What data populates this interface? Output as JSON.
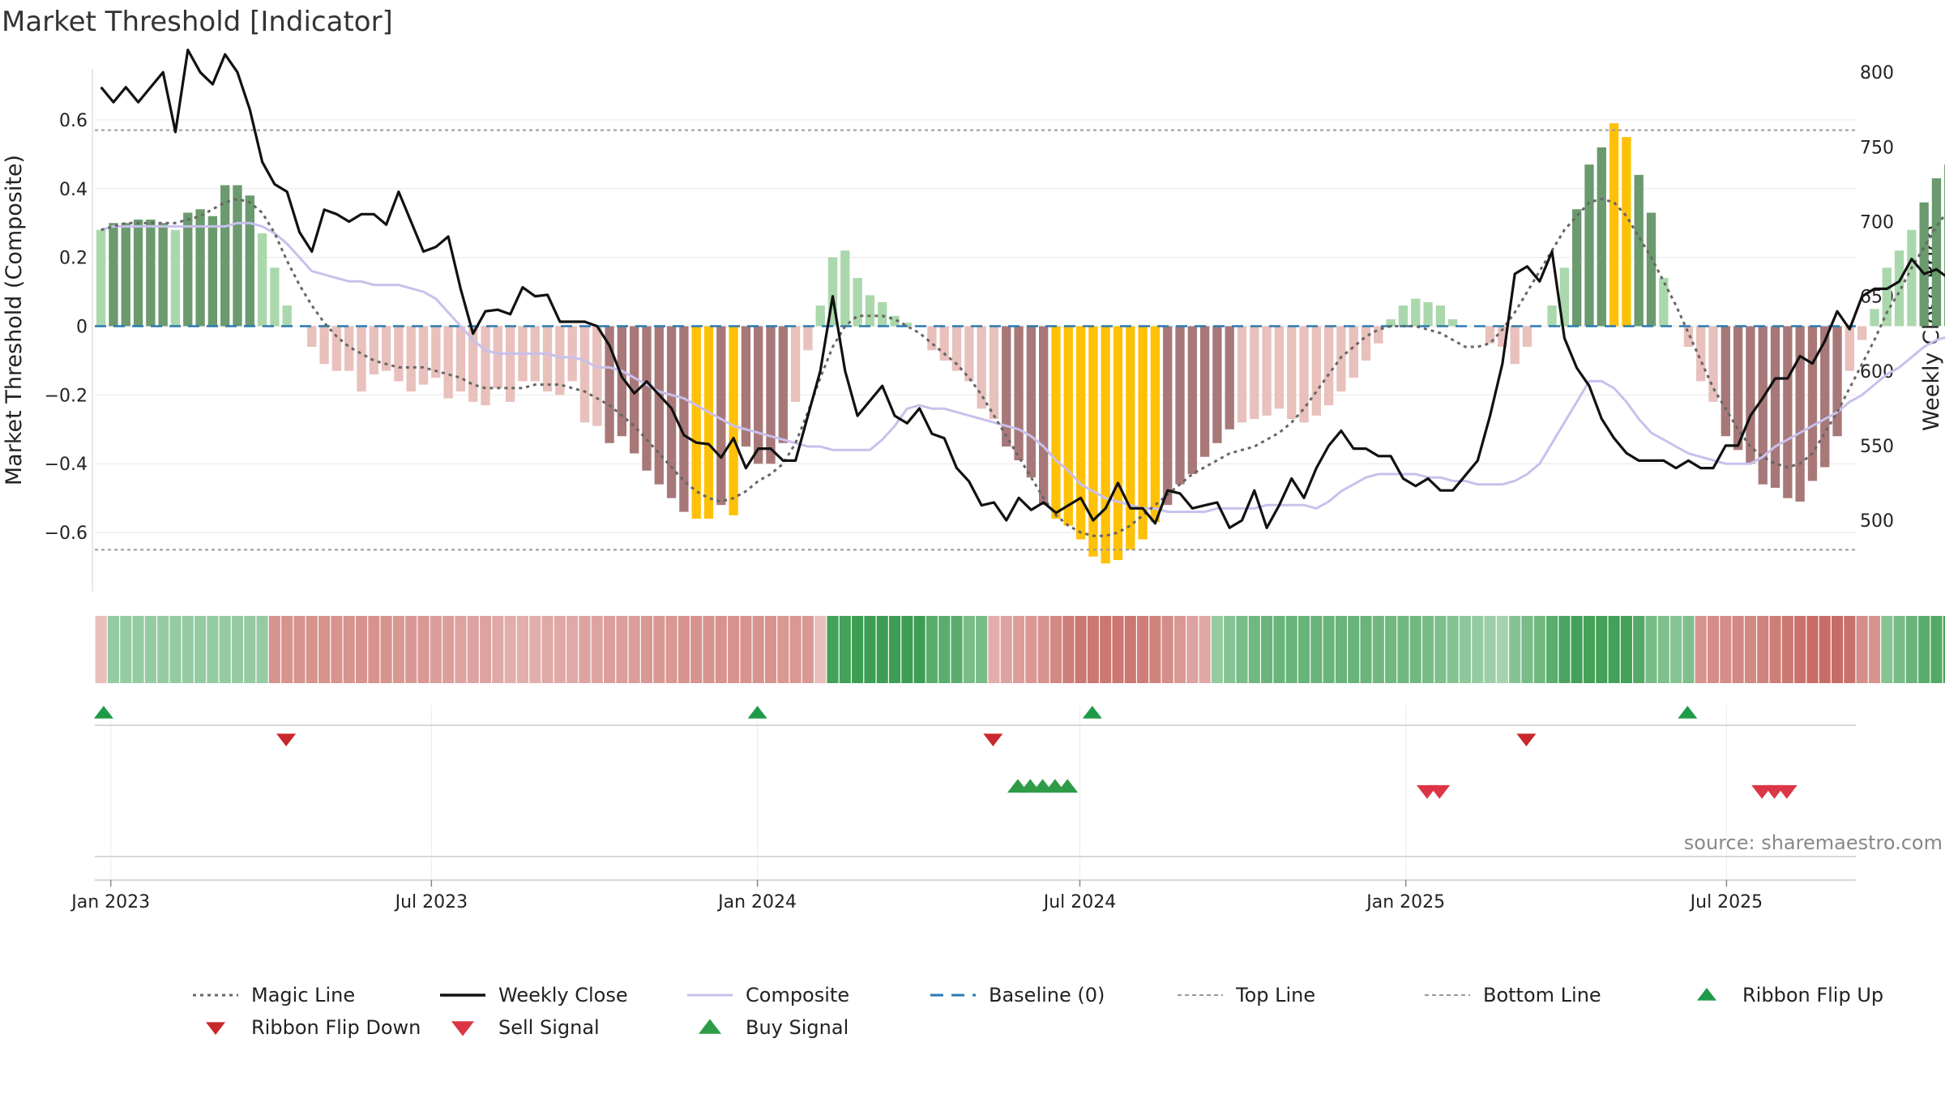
{
  "chart_data": {
    "type": "bar",
    "title": "Market Threshold [Indicator]",
    "ylabel": "Market Threshold (Composite)",
    "y2label": "Weekly Close Price",
    "source": "source: sharemaestro.com",
    "ylim": [
      -0.76,
      0.76
    ],
    "y2lim": [
      455,
      805
    ],
    "yticks": [
      -0.6,
      -0.4,
      -0.2,
      0,
      0.2,
      0.4,
      0.6
    ],
    "ytick_labels": [
      "−0.6",
      "−0.4",
      "−0.2",
      "0",
      "0.2",
      "0.4",
      "0.6"
    ],
    "y2ticks": [
      500,
      550,
      600,
      650,
      700,
      750,
      800
    ],
    "x_start": "2022-12-23",
    "x_end": "2025-09-12",
    "xticks": [
      "2023-01-01",
      "2023-07-01",
      "2024-01-01",
      "2024-07-01",
      "2025-01-01",
      "2025-07-01"
    ],
    "xtick_labels": [
      "Jan 2023",
      "Jul 2023",
      "Jan 2024",
      "Jul 2024",
      "Jan 2025",
      "Jul 2025"
    ],
    "top_line": 0.57,
    "bottom_line": -0.65,
    "colors": {
      "pos_strong": "#6a9a6e",
      "pos_weak": "#aad8ac",
      "neg_strong": "#a87878",
      "neg_weak": "#e8c0bc",
      "extreme": "#ffc107",
      "close": "#111111",
      "composite": "#c8c0ec",
      "magic": "#666666",
      "baseline": "#2a7ab0",
      "threshold": "#999999",
      "buy": "#2e9c46",
      "sell": "#dc3545",
      "flip_up": "#1e9a48",
      "flip_down": "#c8282c"
    },
    "threshold_bars": [
      0.28,
      0.3,
      0.3,
      0.31,
      0.31,
      0.3,
      0.28,
      0.33,
      0.34,
      0.32,
      0.41,
      0.41,
      0.38,
      0.27,
      0.17,
      0.06,
      0,
      -0.06,
      -0.11,
      -0.13,
      -0.13,
      -0.19,
      -0.14,
      -0.13,
      -0.16,
      -0.19,
      -0.17,
      -0.15,
      -0.21,
      -0.19,
      -0.22,
      -0.23,
      -0.18,
      -0.22,
      -0.16,
      -0.16,
      -0.19,
      -0.2,
      -0.16,
      -0.28,
      -0.29,
      -0.34,
      -0.32,
      -0.37,
      -0.42,
      -0.46,
      -0.5,
      -0.54,
      -0.56,
      -0.56,
      -0.52,
      -0.55,
      -0.35,
      -0.4,
      -0.4,
      -0.34,
      -0.22,
      -0.07,
      0.06,
      0.2,
      0.22,
      0.14,
      0.09,
      0.07,
      0.03,
      0.01,
      0,
      -0.07,
      -0.1,
      -0.13,
      -0.16,
      -0.24,
      -0.27,
      -0.35,
      -0.39,
      -0.44,
      -0.52,
      -0.56,
      -0.58,
      -0.62,
      -0.67,
      -0.69,
      -0.68,
      -0.65,
      -0.62,
      -0.57,
      -0.52,
      -0.46,
      -0.43,
      -0.38,
      -0.34,
      -0.3,
      -0.28,
      -0.27,
      -0.26,
      -0.24,
      -0.27,
      -0.28,
      -0.26,
      -0.23,
      -0.19,
      -0.15,
      -0.1,
      -0.05,
      0.02,
      0.06,
      0.08,
      0.07,
      0.06,
      0.02,
      0,
      0,
      -0.05,
      -0.06,
      -0.11,
      -0.06,
      0,
      0.06,
      0.17,
      0.34,
      0.47,
      0.52,
      0.59,
      0.55,
      0.44,
      0.33,
      0.14,
      0,
      -0.06,
      -0.16,
      -0.22,
      -0.32,
      -0.36,
      -0.4,
      -0.46,
      -0.47,
      -0.5,
      -0.51,
      -0.45,
      -0.41,
      -0.32,
      -0.13,
      -0.04,
      0.05,
      0.17,
      0.22,
      0.28,
      0.36,
      0.43,
      0.47,
      0.52,
      0.58,
      0.58,
      0.57,
      0.49,
      0.48,
      0.45,
      0.42,
      0.39
    ],
    "weekly_close": [
      790,
      780,
      790,
      780,
      790,
      800,
      760,
      815,
      800,
      792,
      812,
      800,
      775,
      740,
      725,
      720,
      693,
      680,
      708,
      705,
      700,
      705,
      705,
      698,
      720,
      700,
      680,
      683,
      690,
      655,
      625,
      640,
      641,
      638,
      656,
      650,
      651,
      633,
      633,
      633,
      630,
      617,
      596,
      585,
      593,
      584,
      575,
      557,
      552,
      551,
      542,
      555,
      535,
      548,
      548,
      540,
      540,
      570,
      600,
      650,
      600,
      570,
      580,
      590,
      570,
      565,
      575,
      558,
      555,
      535,
      526,
      510,
      512,
      500,
      515,
      507,
      512,
      505,
      510,
      515,
      500,
      508,
      525,
      508,
      508,
      498,
      520,
      518,
      508,
      510,
      512,
      495,
      500,
      520,
      495,
      510,
      528,
      515,
      535,
      550,
      560,
      548,
      548,
      543,
      543,
      528,
      523,
      528,
      520,
      520,
      530,
      540,
      570,
      605,
      665,
      670,
      660,
      680,
      622,
      602,
      590,
      568,
      555,
      545,
      540,
      540,
      540,
      535,
      540,
      535,
      535,
      550,
      550,
      570,
      582,
      595,
      595,
      610,
      605,
      620,
      640,
      628,
      650,
      655,
      655,
      660,
      675,
      665,
      668,
      662,
      670,
      682,
      690,
      690,
      694
    ],
    "composite": [
      0.28,
      0.29,
      0.29,
      0.29,
      0.29,
      0.29,
      0.29,
      0.29,
      0.29,
      0.29,
      0.29,
      0.3,
      0.3,
      0.29,
      0.27,
      0.24,
      0.2,
      0.16,
      0.15,
      0.14,
      0.13,
      0.13,
      0.12,
      0.12,
      0.12,
      0.11,
      0.1,
      0.08,
      0.04,
      0,
      -0.04,
      -0.07,
      -0.08,
      -0.08,
      -0.08,
      -0.08,
      -0.08,
      -0.09,
      -0.09,
      -0.1,
      -0.12,
      -0.12,
      -0.13,
      -0.15,
      -0.17,
      -0.19,
      -0.2,
      -0.21,
      -0.23,
      -0.25,
      -0.27,
      -0.29,
      -0.3,
      -0.31,
      -0.32,
      -0.33,
      -0.34,
      -0.35,
      -0.35,
      -0.36,
      -0.36,
      -0.36,
      -0.36,
      -0.33,
      -0.29,
      -0.24,
      -0.23,
      -0.24,
      -0.24,
      -0.25,
      -0.26,
      -0.27,
      -0.28,
      -0.29,
      -0.3,
      -0.32,
      -0.35,
      -0.39,
      -0.42,
      -0.46,
      -0.48,
      -0.5,
      -0.51,
      -0.52,
      -0.53,
      -0.53,
      -0.54,
      -0.54,
      -0.54,
      -0.54,
      -0.53,
      -0.53,
      -0.53,
      -0.53,
      -0.52,
      -0.52,
      -0.52,
      -0.52,
      -0.53,
      -0.51,
      -0.48,
      -0.46,
      -0.44,
      -0.43,
      -0.43,
      -0.43,
      -0.43,
      -0.44,
      -0.44,
      -0.45,
      -0.45,
      -0.46,
      -0.46,
      -0.46,
      -0.45,
      -0.43,
      -0.4,
      -0.34,
      -0.28,
      -0.22,
      -0.16,
      -0.16,
      -0.18,
      -0.22,
      -0.27,
      -0.31,
      -0.33,
      -0.35,
      -0.37,
      -0.38,
      -0.39,
      -0.4,
      -0.4,
      -0.4,
      -0.38,
      -0.35,
      -0.33,
      -0.31,
      -0.29,
      -0.27,
      -0.25,
      -0.22,
      -0.2,
      -0.17,
      -0.14,
      -0.12,
      -0.09,
      -0.06,
      -0.04,
      -0.03,
      -0.02,
      -0.01,
      0.01,
      0.03,
      0.05,
      0.07
    ],
    "magic_line": [
      0.28,
      0.29,
      0.3,
      0.3,
      0.3,
      0.3,
      0.3,
      0.31,
      0.32,
      0.34,
      0.36,
      0.37,
      0.36,
      0.33,
      0.27,
      0.19,
      0.12,
      0.06,
      0.01,
      -0.03,
      -0.06,
      -0.08,
      -0.1,
      -0.11,
      -0.12,
      -0.12,
      -0.12,
      -0.13,
      -0.14,
      -0.15,
      -0.17,
      -0.18,
      -0.18,
      -0.18,
      -0.18,
      -0.17,
      -0.17,
      -0.17,
      -0.18,
      -0.19,
      -0.21,
      -0.23,
      -0.26,
      -0.29,
      -0.33,
      -0.37,
      -0.41,
      -0.45,
      -0.48,
      -0.5,
      -0.51,
      -0.5,
      -0.48,
      -0.45,
      -0.43,
      -0.4,
      -0.34,
      -0.25,
      -0.15,
      -0.06,
      0,
      0.03,
      0.03,
      0.03,
      0.02,
      0,
      -0.02,
      -0.05,
      -0.08,
      -0.11,
      -0.15,
      -0.2,
      -0.26,
      -0.32,
      -0.38,
      -0.44,
      -0.5,
      -0.55,
      -0.58,
      -0.6,
      -0.61,
      -0.61,
      -0.6,
      -0.58,
      -0.55,
      -0.52,
      -0.49,
      -0.46,
      -0.43,
      -0.41,
      -0.39,
      -0.37,
      -0.36,
      -0.35,
      -0.33,
      -0.31,
      -0.28,
      -0.24,
      -0.19,
      -0.14,
      -0.09,
      -0.06,
      -0.03,
      -0.01,
      0,
      0,
      0,
      -0.01,
      -0.02,
      -0.04,
      -0.06,
      -0.06,
      -0.05,
      -0.01,
      0.04,
      0.1,
      0.16,
      0.22,
      0.28,
      0.32,
      0.36,
      0.37,
      0.36,
      0.32,
      0.26,
      0.2,
      0.13,
      0.06,
      -0.02,
      -0.1,
      -0.18,
      -0.24,
      -0.3,
      -0.35,
      -0.38,
      -0.4,
      -0.41,
      -0.4,
      -0.37,
      -0.31,
      -0.25,
      -0.18,
      -0.11,
      -0.04,
      0.04,
      0.1,
      0.17,
      0.23,
      0.29,
      0.34,
      0.39,
      0.43,
      0.46,
      0.47,
      0.46,
      0.45,
      0.45,
      0.44,
      0.43,
      0.42
    ],
    "ribbon": [
      -0.05,
      0.3,
      0.3,
      0.3,
      0.3,
      0.3,
      0.3,
      0.3,
      0.3,
      0.3,
      0.3,
      0.3,
      0.3,
      0.3,
      -0.45,
      -0.45,
      -0.45,
      -0.45,
      -0.45,
      -0.45,
      -0.45,
      -0.45,
      -0.45,
      -0.45,
      -0.4,
      -0.4,
      -0.4,
      -0.35,
      -0.35,
      -0.3,
      -0.3,
      -0.3,
      -0.25,
      -0.2,
      -0.2,
      -0.2,
      -0.25,
      -0.25,
      -0.25,
      -0.3,
      -0.3,
      -0.35,
      -0.35,
      -0.35,
      -0.4,
      -0.4,
      -0.4,
      -0.45,
      -0.45,
      -0.45,
      -0.45,
      -0.45,
      -0.45,
      -0.45,
      -0.45,
      -0.4,
      -0.4,
      -0.4,
      -0.05,
      0.85,
      0.85,
      0.9,
      0.9,
      0.9,
      0.9,
      0.9,
      0.9,
      0.7,
      0.7,
      0.7,
      0.5,
      0.5,
      -0.2,
      -0.3,
      -0.35,
      -0.4,
      -0.45,
      -0.55,
      -0.65,
      -0.7,
      -0.7,
      -0.7,
      -0.7,
      -0.7,
      -0.65,
      -0.6,
      -0.5,
      -0.4,
      -0.3,
      -0.25,
      0.3,
      0.4,
      0.5,
      0.55,
      0.6,
      0.6,
      0.6,
      0.6,
      0.6,
      0.6,
      0.6,
      0.6,
      0.6,
      0.55,
      0.55,
      0.55,
      0.55,
      0.5,
      0.45,
      0.4,
      0.35,
      0.3,
      0.25,
      0.2,
      0.4,
      0.5,
      0.55,
      0.7,
      0.8,
      0.85,
      0.85,
      0.85,
      0.85,
      0.85,
      0.75,
      0.5,
      0.45,
      0.4,
      0.45,
      -0.45,
      -0.5,
      -0.5,
      -0.55,
      -0.55,
      -0.6,
      -0.65,
      -0.7,
      -0.75,
      -0.8,
      -0.8,
      -0.8,
      -0.75,
      -0.5,
      -0.45,
      0.4,
      0.5,
      0.6,
      0.7,
      0.75,
      0.8,
      0.85,
      0.9,
      0.9,
      0.9,
      0.9,
      0.9,
      0.9,
      0.9,
      0.9,
      0.85,
      0.8,
      0.7,
      0.6,
      0.5
    ],
    "ribbon_flip_up": [
      "2022-12-28",
      "2024-01-01",
      "2024-07-08",
      "2025-06-09"
    ],
    "ribbon_flip_down": [
      "2023-04-10",
      "2024-05-13",
      "2025-03-10"
    ],
    "buy_signal": [
      "2024-05-27",
      "2024-06-03",
      "2024-06-10",
      "2024-06-17",
      "2024-06-24"
    ],
    "sell_signal": [
      "2025-01-13",
      "2025-01-20",
      "2025-07-21",
      "2025-07-28",
      "2025-08-04"
    ],
    "legend": [
      {
        "key": "magic",
        "label": "Magic Line"
      },
      {
        "key": "close",
        "label": "Weekly Close"
      },
      {
        "key": "composite",
        "label": "Composite"
      },
      {
        "key": "baseline",
        "label": "Baseline (0)"
      },
      {
        "key": "top",
        "label": "Top Line"
      },
      {
        "key": "bottom",
        "label": "Bottom Line"
      },
      {
        "key": "flip_up",
        "label": "Ribbon Flip Up"
      },
      {
        "key": "flip_down",
        "label": "Ribbon Flip Down"
      },
      {
        "key": "sell",
        "label": "Sell Signal"
      },
      {
        "key": "buy",
        "label": "Buy Signal"
      }
    ]
  }
}
